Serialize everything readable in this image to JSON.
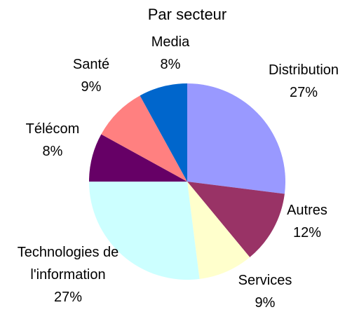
{
  "chart_data": {
    "type": "pie",
    "title": "Par secteur",
    "categories": [
      "Distribution",
      "Autres",
      "Services",
      "Technologies de l'information",
      "Télécom",
      "Santé",
      "Media"
    ],
    "values": [
      27,
      12,
      9,
      27,
      8,
      9,
      8
    ],
    "value_labels": [
      "27%",
      "12%",
      "9%",
      "27%",
      "8%",
      "9%",
      "8%"
    ],
    "colors": [
      "#9999ff",
      "#993366",
      "#ffffcc",
      "#ccffff",
      "#660066",
      "#ff8080",
      "#0066cc"
    ]
  }
}
